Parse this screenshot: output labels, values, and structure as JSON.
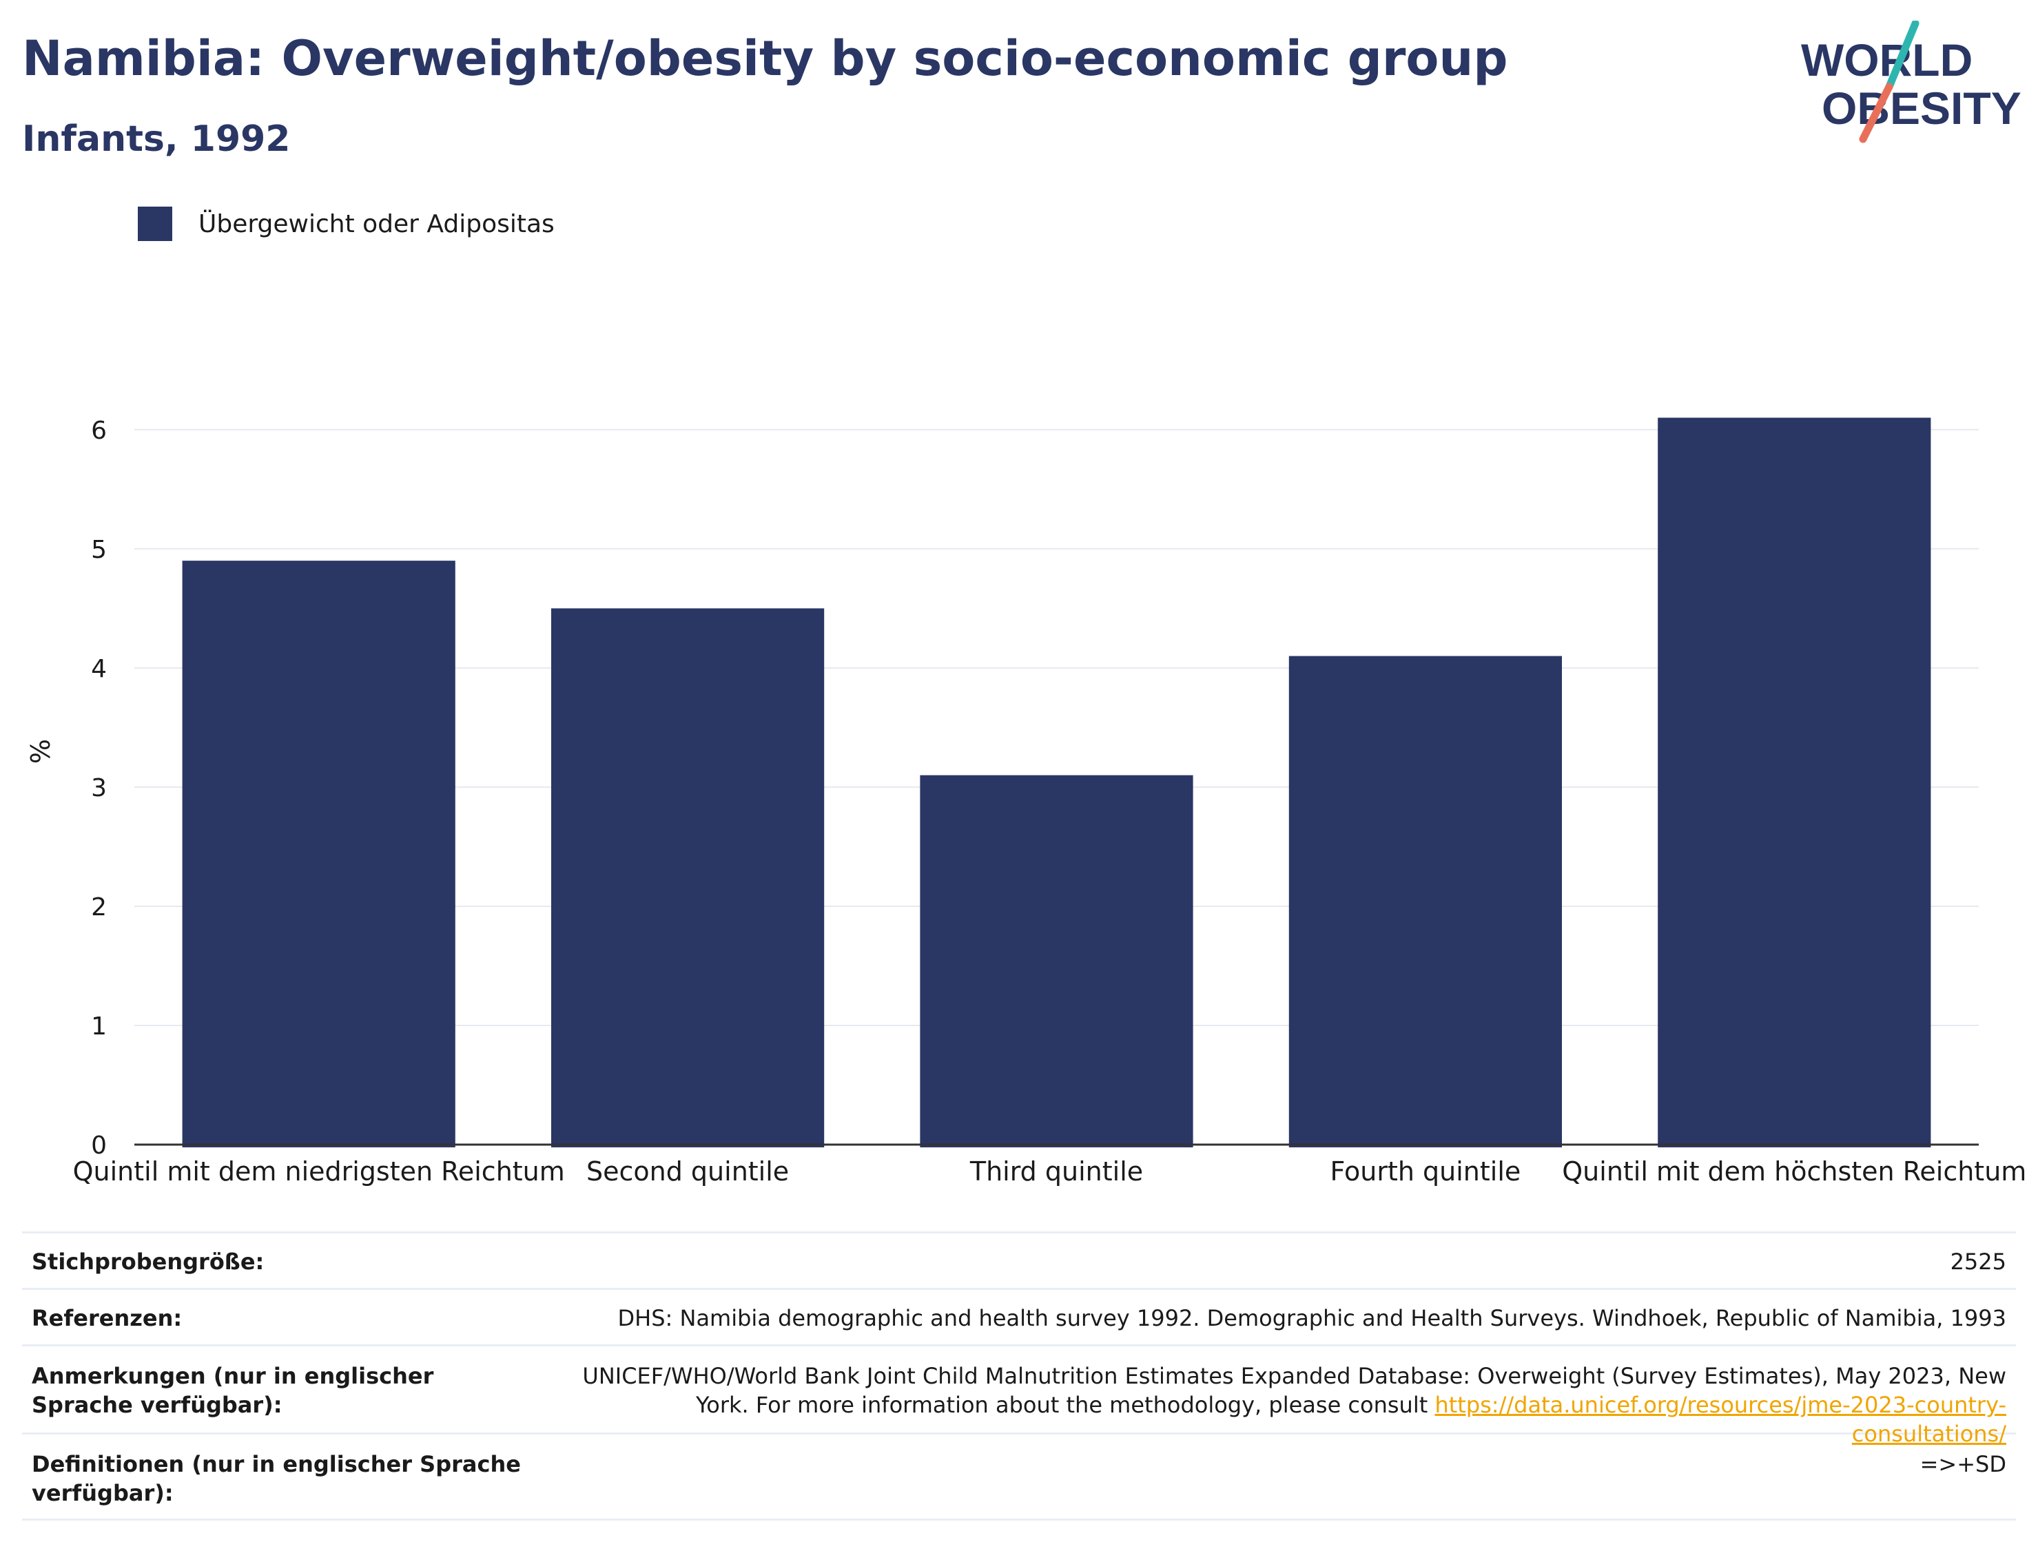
{
  "header": {
    "title": "Namibia: Overweight/obesity by socio-economic group",
    "subtitle": "Infants, 1992"
  },
  "logo": {
    "line1": "WORLD",
    "line2": "OBESITY",
    "colors": {
      "text": "#2a3664",
      "slash_top": "#2fb5b0",
      "slash_bottom": "#e8705a"
    }
  },
  "chart_data": {
    "type": "bar",
    "title": "Namibia: Overweight/obesity by socio-economic group",
    "subtitle": "Infants, 1992",
    "categories": [
      "Quintil mit dem niedrigsten Reichtum",
      "Second quintile",
      "Third quintile",
      "Fourth quintile",
      "Quintil mit dem höchsten Reichtum"
    ],
    "series": [
      {
        "name": "Übergewicht oder Adipositas",
        "values": [
          4.9,
          4.5,
          3.1,
          4.1,
          6.1
        ],
        "color": "#2a3664"
      }
    ],
    "xlabel": "",
    "ylabel": "%",
    "ylim": [
      0,
      6.6
    ],
    "yticks": [
      0,
      1,
      2,
      3,
      4,
      5,
      6
    ],
    "grid": true,
    "legend_position": "top-left"
  },
  "meta": {
    "rows": [
      {
        "key": "Stichprobengröße:",
        "value": "2525"
      },
      {
        "key": "Referenzen:",
        "value": "DHS: Namibia demographic and health survey 1992. Demographic and Health Surveys. Windhoek, Republic of Namibia, 1993"
      },
      {
        "key": "Anmerkungen (nur in englischer Sprache verfügbar):",
        "value": "UNICEF/WHO/World Bank Joint Child Malnutrition Estimates Expanded Database: Overweight (Survey Estimates), May 2023, New York. For more information about the methodology, please consult ",
        "link": "https://data.unicef.org/resources/jme-2023-country-consultations/"
      },
      {
        "key": "Definitionen (nur in englischer Sprache verfügbar):",
        "value": "=>+SD"
      }
    ]
  }
}
